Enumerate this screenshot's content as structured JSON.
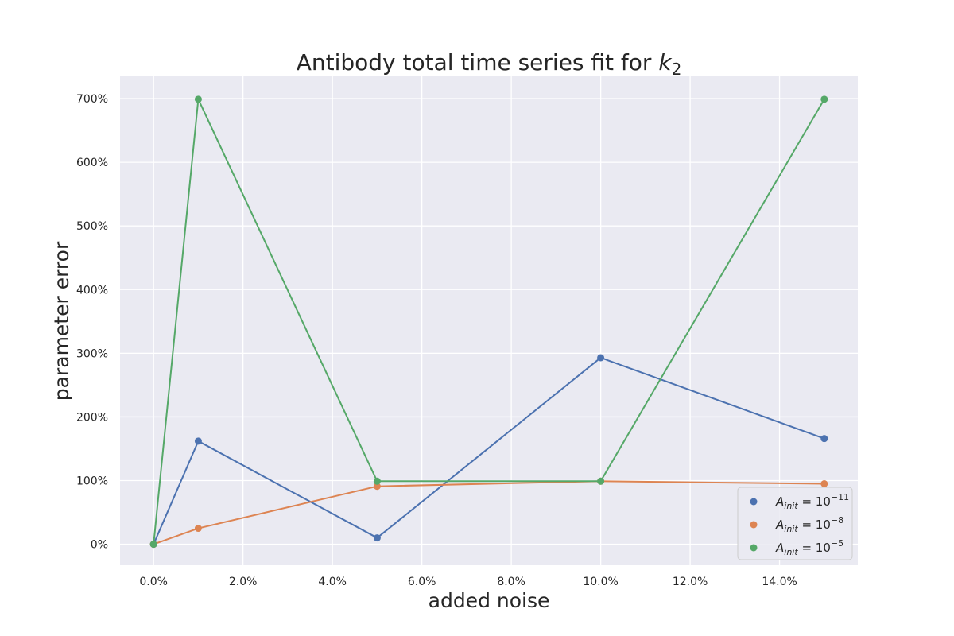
{
  "chart_data": {
    "type": "line",
    "title": "Antibody total time series fit for ",
    "title_math_var": "k",
    "title_math_sub": "2",
    "xlabel": "added noise",
    "ylabel": "parameter error",
    "x": [
      0.0,
      1.0,
      5.0,
      10.0,
      15.0
    ],
    "xlim": [
      -0.75,
      15.75
    ],
    "ylim": [
      -33,
      735
    ],
    "x_ticks": [
      0,
      2,
      4,
      6,
      8,
      10,
      12,
      14
    ],
    "x_tick_labels": [
      "0.0%",
      "2.0%",
      "4.0%",
      "6.0%",
      "8.0%",
      "10.0%",
      "12.0%",
      "14.0%"
    ],
    "y_ticks": [
      0,
      100,
      200,
      300,
      400,
      500,
      600,
      700
    ],
    "y_tick_labels": [
      "0%",
      "100%",
      "200%",
      "300%",
      "400%",
      "500%",
      "600%",
      "700%"
    ],
    "grid": true,
    "legend_position": "bottom-right",
    "series": [
      {
        "name_base": "A",
        "name_sub": "init",
        "name_mid": " = 10",
        "name_exp": "−11",
        "color": "#4c72b0",
        "values": [
          0,
          162,
          10,
          293,
          166
        ]
      },
      {
        "name_base": "A",
        "name_sub": "init",
        "name_mid": " = 10",
        "name_exp": "−8",
        "color": "#dd8452",
        "values": [
          0,
          25,
          91,
          99,
          95
        ]
      },
      {
        "name_base": "A",
        "name_sub": "init",
        "name_mid": " = 10",
        "name_exp": "−5",
        "color": "#55a868",
        "values": [
          0,
          699,
          99,
          99,
          699
        ]
      }
    ],
    "colors": {
      "plot_background": "#eaeaf2",
      "grid": "#ffffff",
      "text": "#262626"
    }
  }
}
